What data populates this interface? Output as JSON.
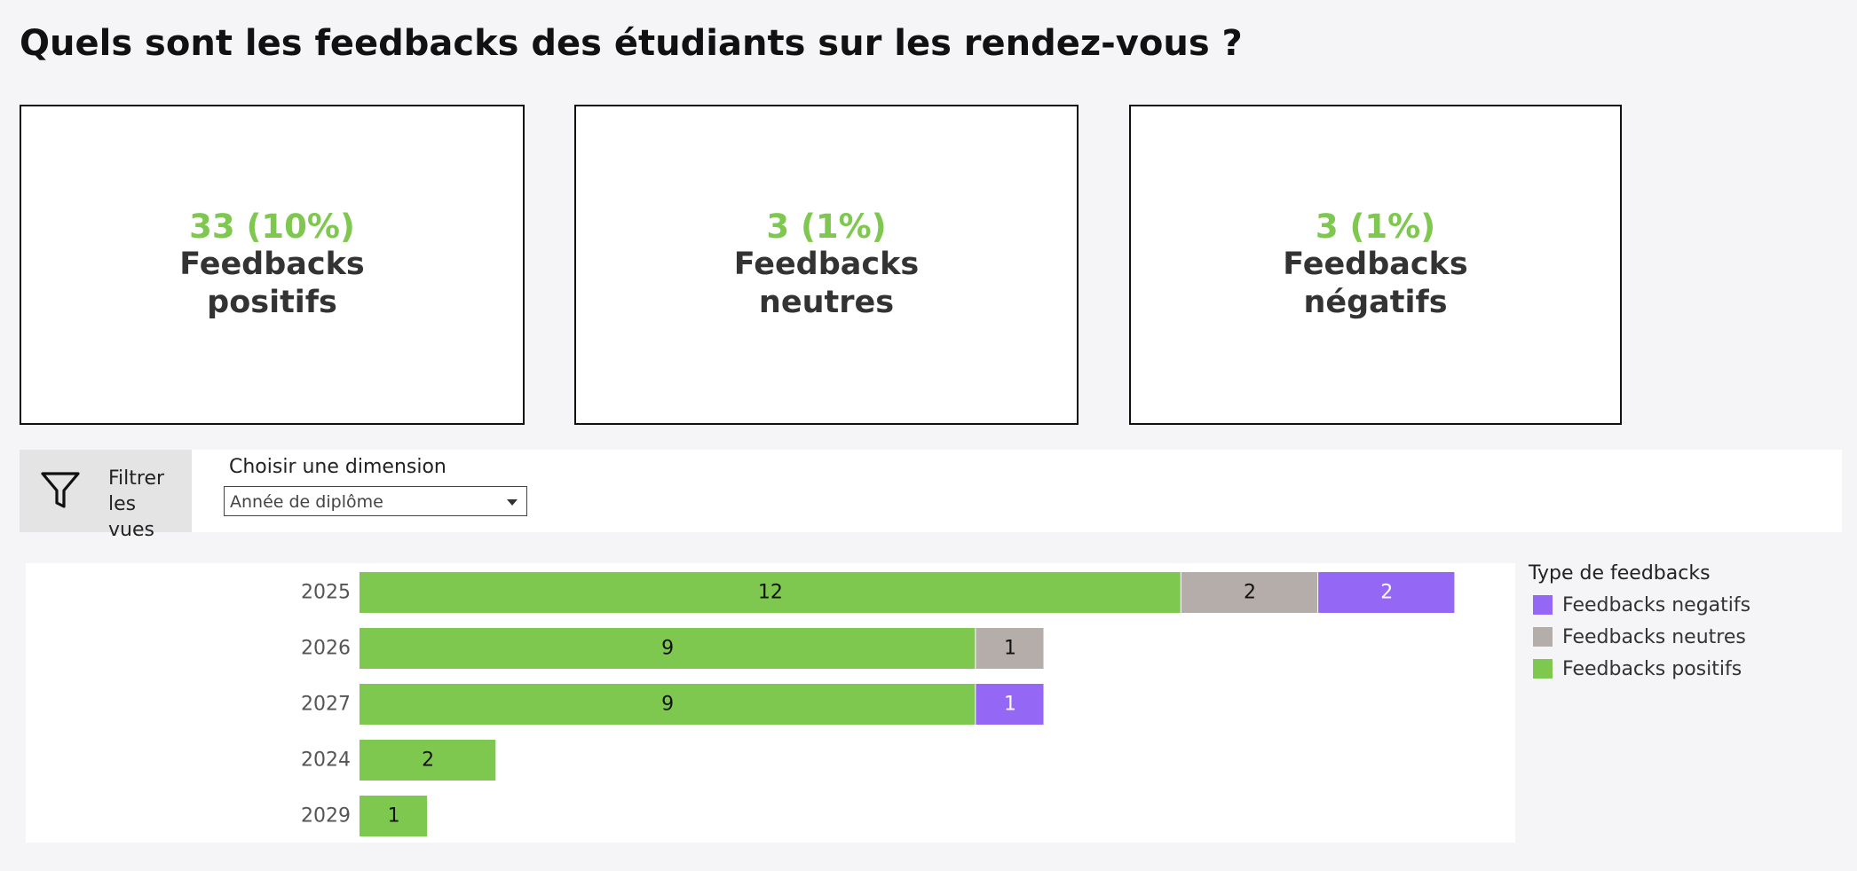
{
  "header": {
    "title": "Quels sont les feedbacks des étudiants sur les rendez-vous ?"
  },
  "kpis": [
    {
      "value": "33 (10%)",
      "label": "Feedbacks positifs"
    },
    {
      "value": "3 (1%)",
      "label": "Feedbacks neutres"
    },
    {
      "value": "3 (1%)",
      "label": "Feedbacks négatifs"
    }
  ],
  "filters": {
    "toggle_label": "Filtrer les vues",
    "toggle_icon": "funnel-icon",
    "dimension_label": "Choisir une dimension",
    "dimension_value": "Année de diplôme"
  },
  "legend": {
    "title": "Type de feedbacks",
    "items": [
      {
        "label": "Feedbacks negatifs",
        "color": "#9467f5"
      },
      {
        "label": "Feedbacks neutres",
        "color": "#b5ada9"
      },
      {
        "label": "Feedbacks positifs",
        "color": "#7ec850"
      }
    ]
  },
  "chart_data": {
    "type": "bar",
    "orientation": "horizontal",
    "stacked": true,
    "categories": [
      "2025",
      "2026",
      "2027",
      "2024",
      "2029"
    ],
    "series": [
      {
        "name": "Feedbacks positifs",
        "color": "#7ec850",
        "label_color": "#111111",
        "values": [
          12,
          9,
          9,
          2,
          1
        ]
      },
      {
        "name": "Feedbacks neutres",
        "color": "#b5ada9",
        "label_color": "#111111",
        "values": [
          2,
          1,
          0,
          0,
          0
        ]
      },
      {
        "name": "Feedbacks negatifs",
        "color": "#9467f5",
        "label_color": "#ffffff",
        "values": [
          2,
          0,
          1,
          0,
          0
        ]
      }
    ],
    "xlim": [
      0,
      16.85
    ],
    "grid": false,
    "legend_position": "right"
  }
}
